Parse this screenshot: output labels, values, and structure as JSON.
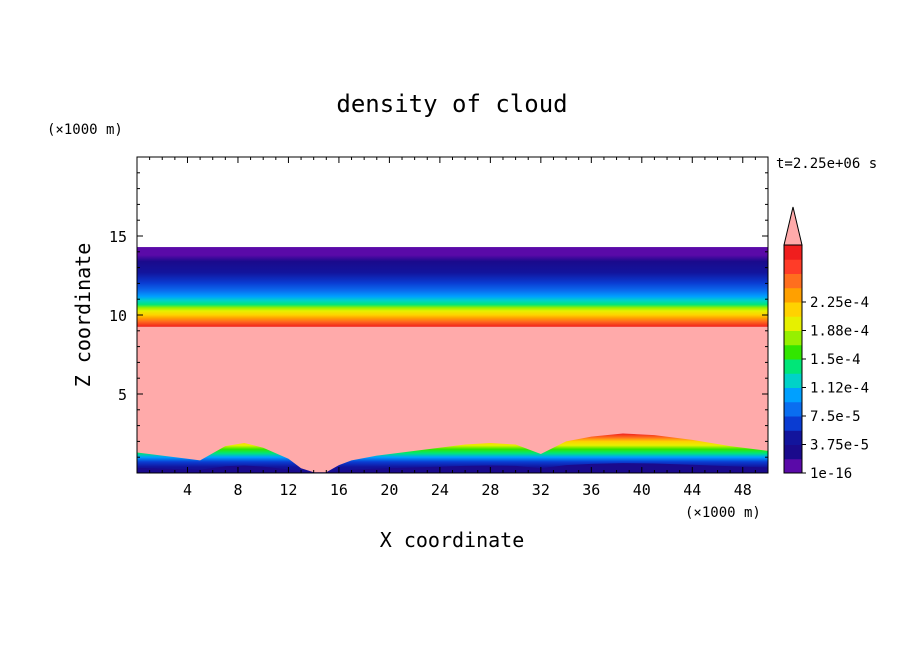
{
  "chart_data": {
    "type": "heatmap",
    "title": "density of cloud",
    "xlabel": "X coordinate",
    "ylabel": "Z coordinate",
    "x_unit": "(×1000 m)",
    "y_unit": "(×1000 m)",
    "time_label": "t=2.25e+06 s",
    "xlim": [
      0,
      50
    ],
    "ylim": [
      0,
      20
    ],
    "x_ticks": [
      4,
      8,
      12,
      16,
      20,
      24,
      28,
      32,
      36,
      40,
      44,
      48
    ],
    "y_ticks": [
      5,
      10,
      15
    ],
    "grid": false,
    "field": {
      "upper_band_z": [
        9.5,
        14.3
      ],
      "saturated_value": "above 2.25e-4",
      "lower_boundary_z": {
        "x": [
          0,
          2,
          4,
          5,
          7,
          8.5,
          10,
          12,
          13,
          14,
          15,
          16,
          17,
          19,
          22,
          26,
          28,
          30,
          32,
          34,
          36,
          38.5,
          41,
          44,
          47,
          50
        ],
        "z": [
          1.3,
          1.1,
          0.9,
          0.8,
          1.7,
          1.9,
          1.6,
          0.9,
          0.3,
          0.05,
          0.05,
          0.5,
          0.8,
          1.1,
          1.4,
          1.8,
          1.9,
          1.8,
          1.2,
          2.0,
          2.3,
          2.5,
          2.4,
          2.1,
          1.7,
          1.4
        ]
      }
    },
    "colorbar": {
      "levels": [
        "1e-16",
        "3.75e-5",
        "7.5e-5",
        "1.12e-4",
        "1.5e-4",
        "1.88e-4",
        "2.25e-4"
      ],
      "colors": [
        "#5a0aa8",
        "#1a0a8c",
        "#12149c",
        "#0a3cd2",
        "#0a6ef0",
        "#00a0ff",
        "#00d2c8",
        "#00e678",
        "#32e600",
        "#96f000",
        "#e6f000",
        "#ffd200",
        "#ffa000",
        "#ff6e1e",
        "#ff3c28",
        "#f01e1e"
      ],
      "over_color": "#ffaaaa"
    }
  }
}
